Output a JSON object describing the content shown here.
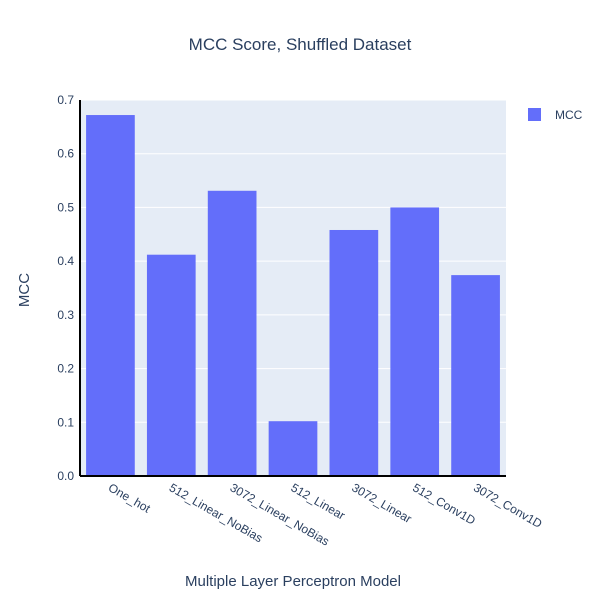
{
  "chart_data": {
    "type": "bar",
    "title": "MCC Score, Shuffled Dataset",
    "xlabel": "Multiple Layer Perceptron Model",
    "ylabel": "MCC",
    "categories": [
      "One_hot",
      "512_Linear_NoBias",
      "3072_Linear_NoBias",
      "512_Linear",
      "3072_Linear",
      "512_Conv1D",
      "3072_Conv1D"
    ],
    "series": [
      {
        "name": "MCC",
        "values": [
          0.672,
          0.412,
          0.531,
          0.102,
          0.458,
          0.5,
          0.374
        ],
        "color": "#636efa"
      }
    ],
    "ylim": [
      0,
      0.7
    ],
    "yticks": [
      0,
      0.1,
      0.2,
      0.3,
      0.4,
      0.5,
      0.6,
      0.7
    ],
    "ytick_labels": [
      "0.0",
      "0.1",
      "0.2",
      "0.3",
      "0.4",
      "0.5",
      "0.6",
      "0.7"
    ],
    "grid": true,
    "legend": "right",
    "colors": {
      "plot_background": "#e5ecf6",
      "grid": "#ffffff",
      "axis_line": "#000000",
      "text": "#2a3f5f"
    }
  }
}
